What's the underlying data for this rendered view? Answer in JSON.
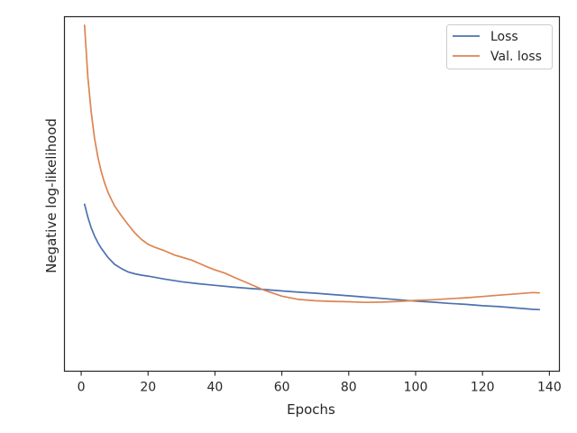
{
  "chart_data": {
    "type": "line",
    "title": "",
    "xlabel": "Epochs",
    "ylabel": "Negative log-likelihood",
    "xlim": [
      -5,
      143
    ],
    "ylim": [
      0.0,
      1.0
    ],
    "xticks": [
      0,
      20,
      40,
      60,
      80,
      100,
      120,
      140
    ],
    "grid": false,
    "legend_position": "top-right",
    "series": [
      {
        "name": "Loss",
        "color": "#4c72b0",
        "x": [
          1,
          2,
          3,
          4,
          5,
          6,
          8,
          10,
          12,
          14,
          16,
          18,
          20,
          25,
          30,
          35,
          40,
          45,
          50,
          55,
          60,
          65,
          70,
          75,
          80,
          85,
          90,
          95,
          100,
          105,
          110,
          115,
          120,
          125,
          130,
          135,
          137
        ],
        "y": [
          0.455,
          0.415,
          0.383,
          0.358,
          0.338,
          0.321,
          0.293,
          0.272,
          0.259,
          0.249,
          0.243,
          0.239,
          0.236,
          0.227,
          0.219,
          0.213,
          0.208,
          0.203,
          0.199,
          0.195,
          0.191,
          0.187,
          0.184,
          0.18,
          0.176,
          0.172,
          0.168,
          0.164,
          0.16,
          0.157,
          0.153,
          0.15,
          0.146,
          0.143,
          0.139,
          0.135,
          0.134
        ]
      },
      {
        "name": "Val. loss",
        "color": "#dd8452",
        "x": [
          1,
          2,
          3,
          4,
          5,
          6,
          7,
          8,
          9,
          10,
          12,
          14,
          16,
          18,
          20,
          22,
          25,
          28,
          30,
          33,
          35,
          38,
          40,
          43,
          46,
          50,
          55,
          60,
          65,
          70,
          75,
          80,
          85,
          90,
          95,
          100,
          105,
          110,
          115,
          120,
          125,
          130,
          135,
          137
        ],
        "y": [
          1.0,
          0.84,
          0.735,
          0.655,
          0.598,
          0.554,
          0.52,
          0.492,
          0.47,
          0.45,
          0.42,
          0.393,
          0.368,
          0.348,
          0.333,
          0.324,
          0.313,
          0.3,
          0.294,
          0.285,
          0.276,
          0.263,
          0.255,
          0.245,
          0.231,
          0.214,
          0.192,
          0.175,
          0.165,
          0.161,
          0.159,
          0.158,
          0.156,
          0.157,
          0.159,
          0.162,
          0.164,
          0.167,
          0.17,
          0.174,
          0.178,
          0.182,
          0.186,
          0.185
        ]
      }
    ]
  }
}
